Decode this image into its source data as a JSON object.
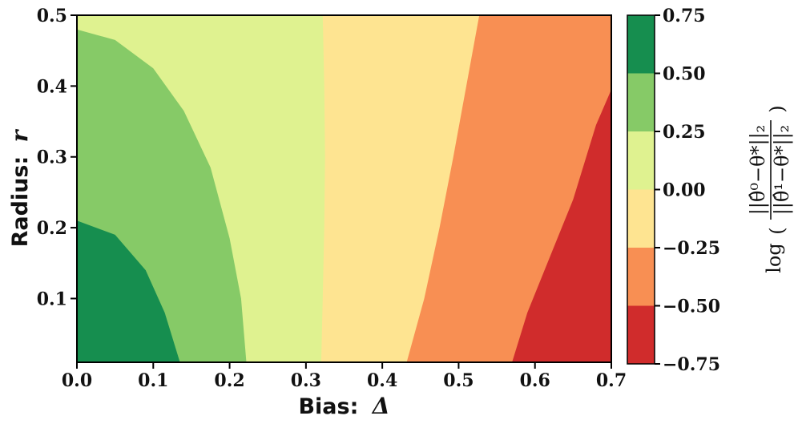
{
  "chart_data": {
    "type": "heatmap",
    "subtype": "filled-contour",
    "xlabel": "Bias:",
    "xlabel_symbol": "Δ",
    "ylabel": "Radius:",
    "ylabel_symbol": "r",
    "colorbar_label": "log(||θ̂⁰−θ*||₂ / ||θ̂¹−θ*||₂)",
    "colorbar_label_parts": {
      "func": "log",
      "numerator": "||θ̂⁰−θ*||₂",
      "denominator": "||θ̂¹−θ*||₂"
    },
    "xlim": [
      0.0,
      0.7
    ],
    "ylim": [
      0.01,
      0.5
    ],
    "xticks": [
      0.0,
      0.1,
      0.2,
      0.3,
      0.4,
      0.5,
      0.6,
      0.7
    ],
    "xtick_labels": [
      "0.0",
      "0.1",
      "0.2",
      "0.3",
      "0.4",
      "0.5",
      "0.6",
      "0.7"
    ],
    "yticks": [
      0.1,
      0.2,
      0.3,
      0.4,
      0.5
    ],
    "ytick_labels": [
      "0.1",
      "0.2",
      "0.3",
      "0.4",
      "0.5"
    ],
    "colorbar_levels": [
      -0.75,
      -0.5,
      -0.25,
      0.0,
      0.25,
      0.5,
      0.75
    ],
    "colorbar_tick_labels": [
      "−0.75",
      "−0.50",
      "−0.25",
      "0.00",
      "0.25",
      "0.50",
      "0.75"
    ],
    "colorbar_colors": [
      "#d02c2c",
      "#f88f53",
      "#fee491",
      "#dff290",
      "#86ca67",
      "#168e4f"
    ],
    "contour_boundaries": [
      {
        "level": 0.5,
        "points": [
          [
            0.0,
            0.21
          ],
          [
            0.05,
            0.19
          ],
          [
            0.09,
            0.14
          ],
          [
            0.115,
            0.08
          ],
          [
            0.135,
            0.01
          ]
        ]
      },
      {
        "level": 0.25,
        "points": [
          [
            0.0,
            0.48
          ],
          [
            0.05,
            0.465
          ],
          [
            0.1,
            0.425
          ],
          [
            0.14,
            0.365
          ],
          [
            0.175,
            0.285
          ],
          [
            0.2,
            0.185
          ],
          [
            0.215,
            0.1
          ],
          [
            0.222,
            0.01
          ]
        ]
      },
      {
        "level": 0.0,
        "points": [
          [
            0.322,
            0.5
          ],
          [
            0.324,
            0.4
          ],
          [
            0.325,
            0.3
          ],
          [
            0.324,
            0.2
          ],
          [
            0.322,
            0.1
          ],
          [
            0.32,
            0.01
          ]
        ]
      },
      {
        "level": -0.25,
        "points": [
          [
            0.527,
            0.5
          ],
          [
            0.51,
            0.4
          ],
          [
            0.493,
            0.3
          ],
          [
            0.475,
            0.2
          ],
          [
            0.455,
            0.1
          ],
          [
            0.432,
            0.01
          ]
        ]
      },
      {
        "level": -0.5,
        "points": [
          [
            0.7,
            0.395
          ],
          [
            0.68,
            0.345
          ],
          [
            0.65,
            0.24
          ],
          [
            0.62,
            0.16
          ],
          [
            0.59,
            0.08
          ],
          [
            0.57,
            0.01
          ]
        ]
      }
    ],
    "grid": false,
    "legend": "colorbar-right"
  }
}
